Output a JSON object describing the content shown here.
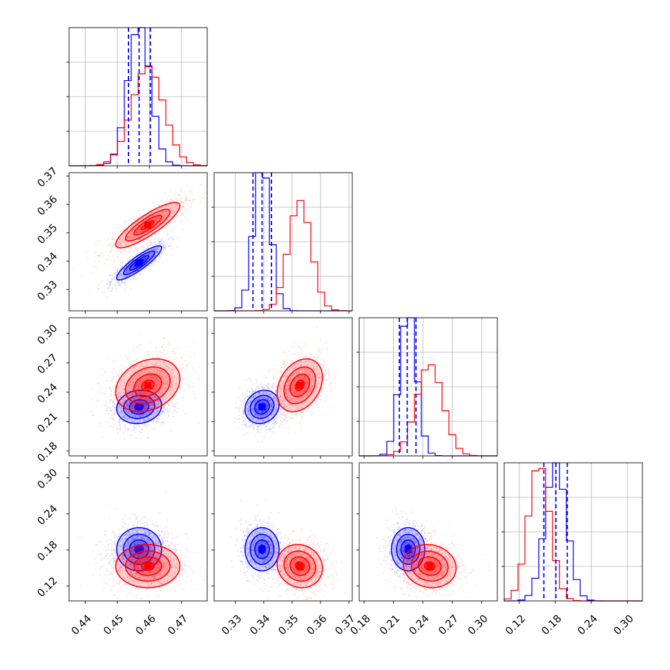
{
  "chart_data": {
    "type": "corner",
    "parameters": 4,
    "colors": {
      "blue": "#0000ff",
      "red": "#ff0000"
    },
    "series": [
      {
        "color": "blue",
        "mean": [
          0.4568,
          0.3394,
          0.225,
          0.181
        ],
        "std": [
          0.0035,
          0.003,
          0.0085,
          0.018
        ],
        "correlation_01": 0.88,
        "correlation_02": 0.1,
        "correlation_12": 0.15,
        "correlation_13": 0.0,
        "correlation_23": 0.0,
        "quantile_lines": [
          [
            0.4535,
            0.4568,
            0.4603
          ],
          [
            0.3362,
            0.3394,
            0.3427
          ],
          [
            0.216,
            0.224,
            0.233
          ],
          [
            0.161,
            0.181,
            0.2
          ]
        ]
      },
      {
        "color": "red",
        "mean": [
          0.4595,
          0.3527,
          0.247,
          0.153
        ],
        "std": [
          0.005,
          0.004,
          0.0135,
          0.018
        ],
        "correlation_01": 0.85,
        "correlation_02": 0.25,
        "correlation_12": 0.3,
        "correlation_13": -0.1,
        "correlation_23": -0.1
      }
    ],
    "axes": [
      {
        "range": [
          0.435,
          0.478
        ],
        "ticks": [
          "0.44",
          "0.45",
          "0.46",
          "0.47"
        ]
      },
      {
        "range": [
          0.3225,
          0.3712
        ],
        "ticks": [
          "0.33",
          "0.34",
          "0.35",
          "0.36",
          "0.37"
        ]
      },
      {
        "range": [
          0.175,
          0.316
        ],
        "ticks": [
          "0.18",
          "0.21",
          "0.24",
          "0.27",
          "0.30"
        ]
      },
      {
        "range": [
          0.095,
          0.325
        ],
        "ticks": [
          "0.12",
          "0.18",
          "0.24",
          "0.30"
        ]
      }
    ],
    "grid": true
  }
}
